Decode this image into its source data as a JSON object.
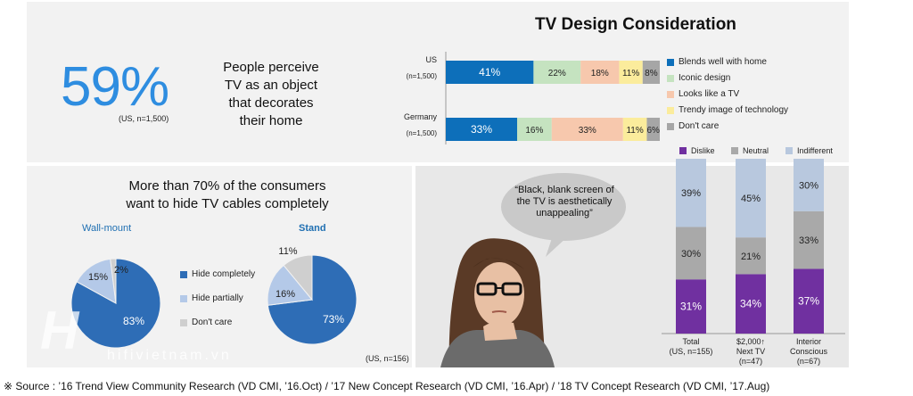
{
  "headline": {
    "stat": "59%",
    "stat_note": "(US, n=1,500)",
    "statement_lines": [
      "People perceive",
      "TV as an object",
      "that decorates",
      "their home"
    ]
  },
  "cables": {
    "title_lines": [
      "More than 70%  of the consumers",
      "want to hide TV cables completely"
    ],
    "wall_label": "Wall-mount",
    "stand_label": "Stand",
    "sample_note": "(US, n=156)"
  },
  "quote": "“Black, blank screen of the TV is aesthetically unappealing”",
  "footer": "※ Source : ’16 Trend View Community Research (VD CMI, ’16.Oct) / ’17 New Concept Research (VD CMI, ’16.Apr) / ’18 TV Concept Research (VD CMI, ’17.Aug)",
  "watermark": "hifivietnam.vn",
  "colors": {
    "blue": "#0d6fba",
    "green": "#c5e3c0",
    "peach": "#f7c8ad",
    "yellow": "#fbec9c",
    "gray": "#a6a6a6",
    "purple": "#7030a0",
    "neutral": "#a9a9a9",
    "indifferent": "#b8c8de",
    "pie_blue": "#2e6db6",
    "pie_light": "#b4c9e8",
    "pie_gray": "#cfcfcf"
  },
  "chart_data": [
    {
      "type": "bar",
      "orientation": "horizontal-stacked",
      "title": "TV Design Consideration",
      "categories": [
        "US",
        "Germany"
      ],
      "category_notes": [
        "(n=1,500)",
        "(n=1,500)"
      ],
      "series": [
        {
          "name": "Blends well with home",
          "values": [
            41,
            33
          ],
          "labels": [
            "41%",
            "33%"
          ]
        },
        {
          "name": "Iconic design",
          "values": [
            22,
            16
          ],
          "labels": [
            "22%",
            "16%"
          ]
        },
        {
          "name": "Looks like a TV",
          "values": [
            18,
            33
          ],
          "labels": [
            "18%",
            "33%"
          ]
        },
        {
          "name": "Trendy image of technology",
          "values": [
            11,
            11
          ],
          "labels": [
            "11%",
            "11%"
          ]
        },
        {
          "name": "Don't care",
          "values": [
            8,
            6
          ],
          "labels": [
            "8%",
            "6%"
          ]
        }
      ],
      "legend": "right"
    },
    {
      "type": "pie",
      "title": "Wall-mount",
      "slices": [
        {
          "name": "Hide completely",
          "value": 83,
          "label": "83%"
        },
        {
          "name": "Hide partially",
          "value": 15,
          "label": "15%"
        },
        {
          "name": "Don't care",
          "value": 2,
          "label": "2%"
        }
      ],
      "legend": "right"
    },
    {
      "type": "pie",
      "title": "Stand",
      "slices": [
        {
          "name": "Hide completely",
          "value": 73,
          "label": "73%"
        },
        {
          "name": "Hide partially",
          "value": 16,
          "label": "16%"
        },
        {
          "name": "Don't care",
          "value": 11,
          "label": "11%"
        }
      ]
    },
    {
      "type": "bar",
      "orientation": "vertical-stacked",
      "categories": [
        [
          "Total",
          "(US, n=155)"
        ],
        [
          "$2,000↑",
          "Next TV",
          "(n=47)"
        ],
        [
          "Interior",
          "Conscious",
          "(n=67)"
        ]
      ],
      "series": [
        {
          "name": "Dislike",
          "values": [
            31,
            34,
            37
          ],
          "labels": [
            "31%",
            "34%",
            "37%"
          ]
        },
        {
          "name": "Neutral",
          "values": [
            30,
            21,
            33
          ],
          "labels": [
            "30%",
            "21%",
            "33%"
          ]
        },
        {
          "name": "Indifferent",
          "values": [
            39,
            45,
            30
          ],
          "labels": [
            "39%",
            "45%",
            "30%"
          ]
        }
      ],
      "legend": "top"
    }
  ]
}
